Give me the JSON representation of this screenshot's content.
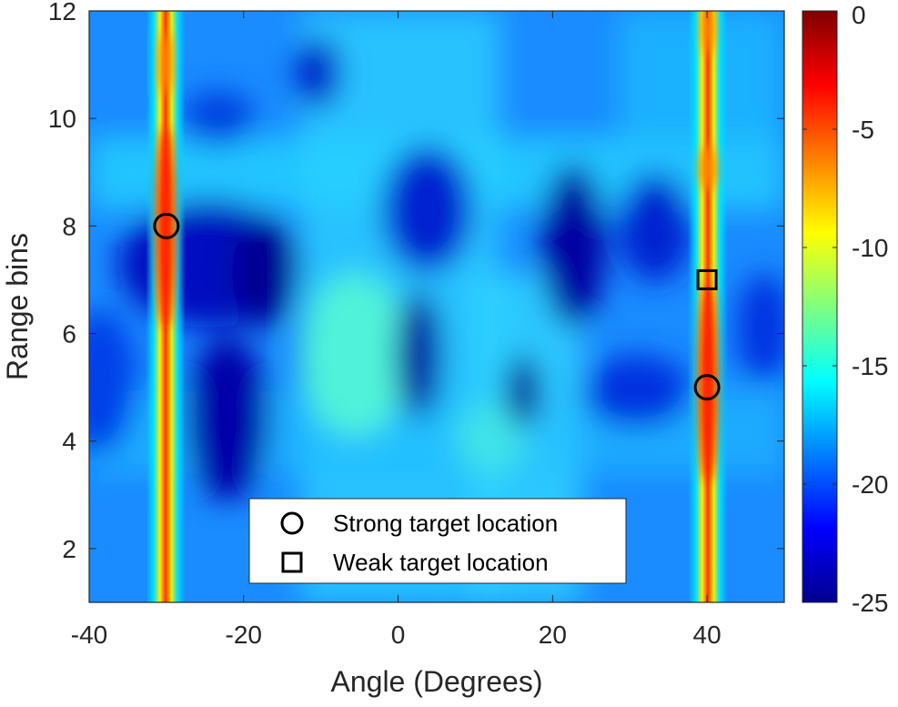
{
  "chart_data": {
    "type": "heatmap",
    "xlabel": "Angle (Degrees)",
    "ylabel": "Range bins",
    "xlim": [
      -40,
      50
    ],
    "ylim": [
      1,
      12
    ],
    "xticks": [
      -40,
      -20,
      0,
      20,
      40
    ],
    "yticks": [
      2,
      4,
      6,
      8,
      10,
      12
    ],
    "colorbar": {
      "colormap": "jet",
      "limits": [
        -25,
        0
      ],
      "ticks": [
        0,
        -5,
        -10,
        -15,
        -20,
        -25
      ]
    },
    "grid": false,
    "legend": {
      "position": "bottom-center",
      "entries": [
        {
          "label": "Strong target location",
          "marker": "circle"
        },
        {
          "label": "Weak target location",
          "marker": "square"
        }
      ]
    },
    "strong_targets": [
      {
        "angle": -30,
        "range_bin": 8
      },
      {
        "angle": 40,
        "range_bin": 5
      }
    ],
    "weak_targets": [
      {
        "angle": 40,
        "range_bin": 7
      }
    ]
  }
}
